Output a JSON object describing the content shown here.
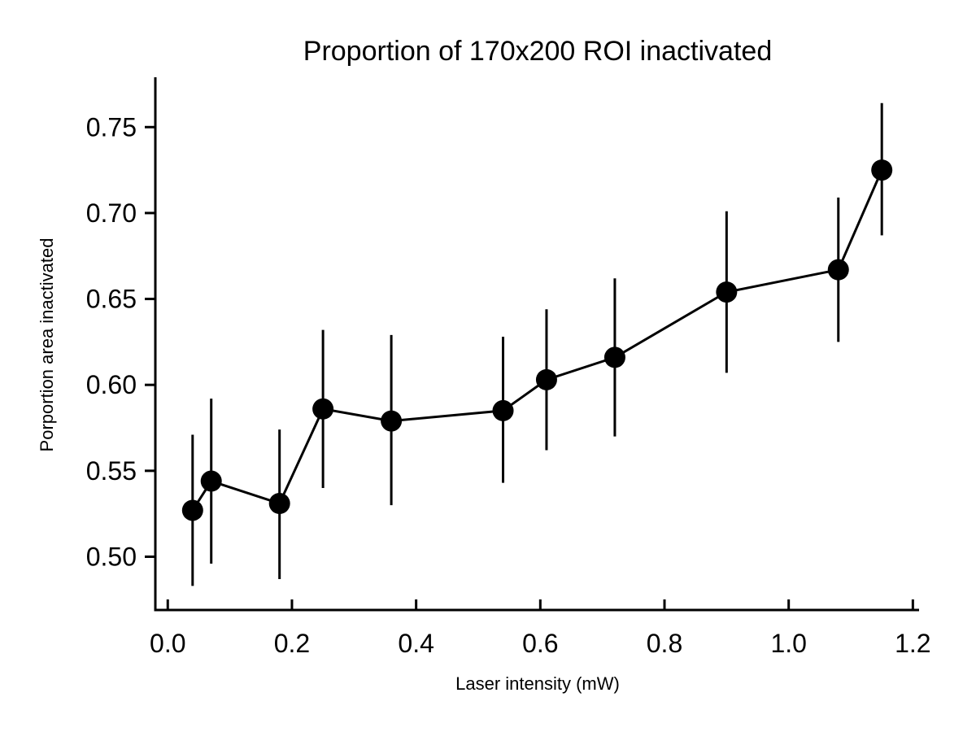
{
  "chart_data": {
    "type": "line",
    "title": "Proportion of 170x200 ROI inactivated",
    "xlabel": "Laser intensity (mW)",
    "ylabel": "Porportion area inactivated",
    "xlim": [
      -0.02,
      1.21
    ],
    "ylim": [
      0.469,
      0.779
    ],
    "xticks": [
      0.0,
      0.2,
      0.4,
      0.6,
      0.8,
      1.0,
      1.2
    ],
    "xtick_labels": [
      "0.0",
      "0.2",
      "0.4",
      "0.6",
      "0.8",
      "1.0",
      "1.2"
    ],
    "yticks": [
      0.5,
      0.55,
      0.6,
      0.65,
      0.7,
      0.75
    ],
    "ytick_labels": [
      "0.50",
      "0.55",
      "0.60",
      "0.65",
      "0.70",
      "0.75"
    ],
    "grid": false,
    "series": [
      {
        "x": [
          0.04,
          0.07,
          0.18,
          0.25,
          0.36,
          0.54,
          0.61,
          0.72,
          0.9,
          1.08,
          1.15
        ],
        "y": [
          0.527,
          0.544,
          0.531,
          0.586,
          0.579,
          0.585,
          0.603,
          0.616,
          0.654,
          0.667,
          0.725
        ],
        "err_low": [
          0.483,
          0.496,
          0.487,
          0.54,
          0.53,
          0.543,
          0.562,
          0.57,
          0.607,
          0.625,
          0.687
        ],
        "err_high": [
          0.571,
          0.592,
          0.574,
          0.632,
          0.629,
          0.628,
          0.644,
          0.662,
          0.701,
          0.709,
          0.764
        ],
        "color": "#000000"
      }
    ]
  }
}
